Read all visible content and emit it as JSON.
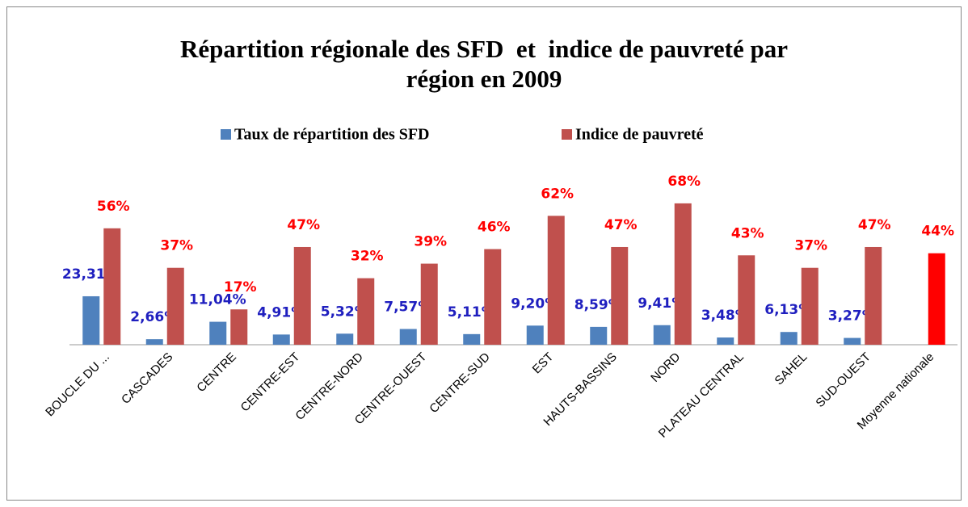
{
  "chart_data": {
    "type": "bar",
    "title": [
      "Répartition régionale des SFD  et  indice de pauvreté par",
      "région en 2009"
    ],
    "categories": [
      "BOUCLE DU ...",
      "CASCADES",
      "CENTRE",
      "CENTRE-EST",
      "CENTRE-NORD",
      "CENTRE-OUEST",
      "CENTRE-SUD",
      "EST",
      "HAUTS-BASSINS",
      "NORD",
      "PLATEAU CENTRAL",
      "SAHEL",
      "SUD-OUEST",
      "Moyenne nationale"
    ],
    "series": [
      {
        "name": "Taux de répartition des SFD",
        "color": "#4f81bd",
        "label_color": "#1f1fbf",
        "values": [
          23.31,
          2.66,
          11.04,
          4.91,
          5.32,
          7.57,
          5.11,
          9.2,
          8.59,
          9.41,
          3.48,
          6.13,
          3.27,
          null
        ],
        "value_labels": [
          "23,31%",
          "2,66%",
          "11,04%",
          "4,91%",
          "5,32%",
          "7,57%",
          "5,11%",
          "9,20%",
          "8,59%",
          "9,41%",
          "3,48%",
          "6,13%",
          "3,27%",
          null
        ]
      },
      {
        "name": "Indice de pauvreté",
        "color": "#c0504d",
        "label_color": "#ff0000",
        "colors": [
          "#c0504d",
          "#c0504d",
          "#c0504d",
          "#c0504d",
          "#c0504d",
          "#c0504d",
          "#c0504d",
          "#c0504d",
          "#c0504d",
          "#c0504d",
          "#c0504d",
          "#c0504d",
          "#c0504d",
          "#ff0000"
        ],
        "values": [
          56,
          37,
          17,
          47,
          32,
          39,
          46,
          62,
          47,
          68,
          43,
          37,
          47,
          44
        ],
        "value_labels": [
          "56%",
          "37%",
          "17%",
          "47%",
          "32%",
          "39%",
          "46%",
          "62%",
          "47%",
          "68%",
          "43%",
          "37%",
          "47%",
          "44%"
        ]
      }
    ],
    "ylim": [
      0,
      80
    ],
    "legend": "top"
  }
}
